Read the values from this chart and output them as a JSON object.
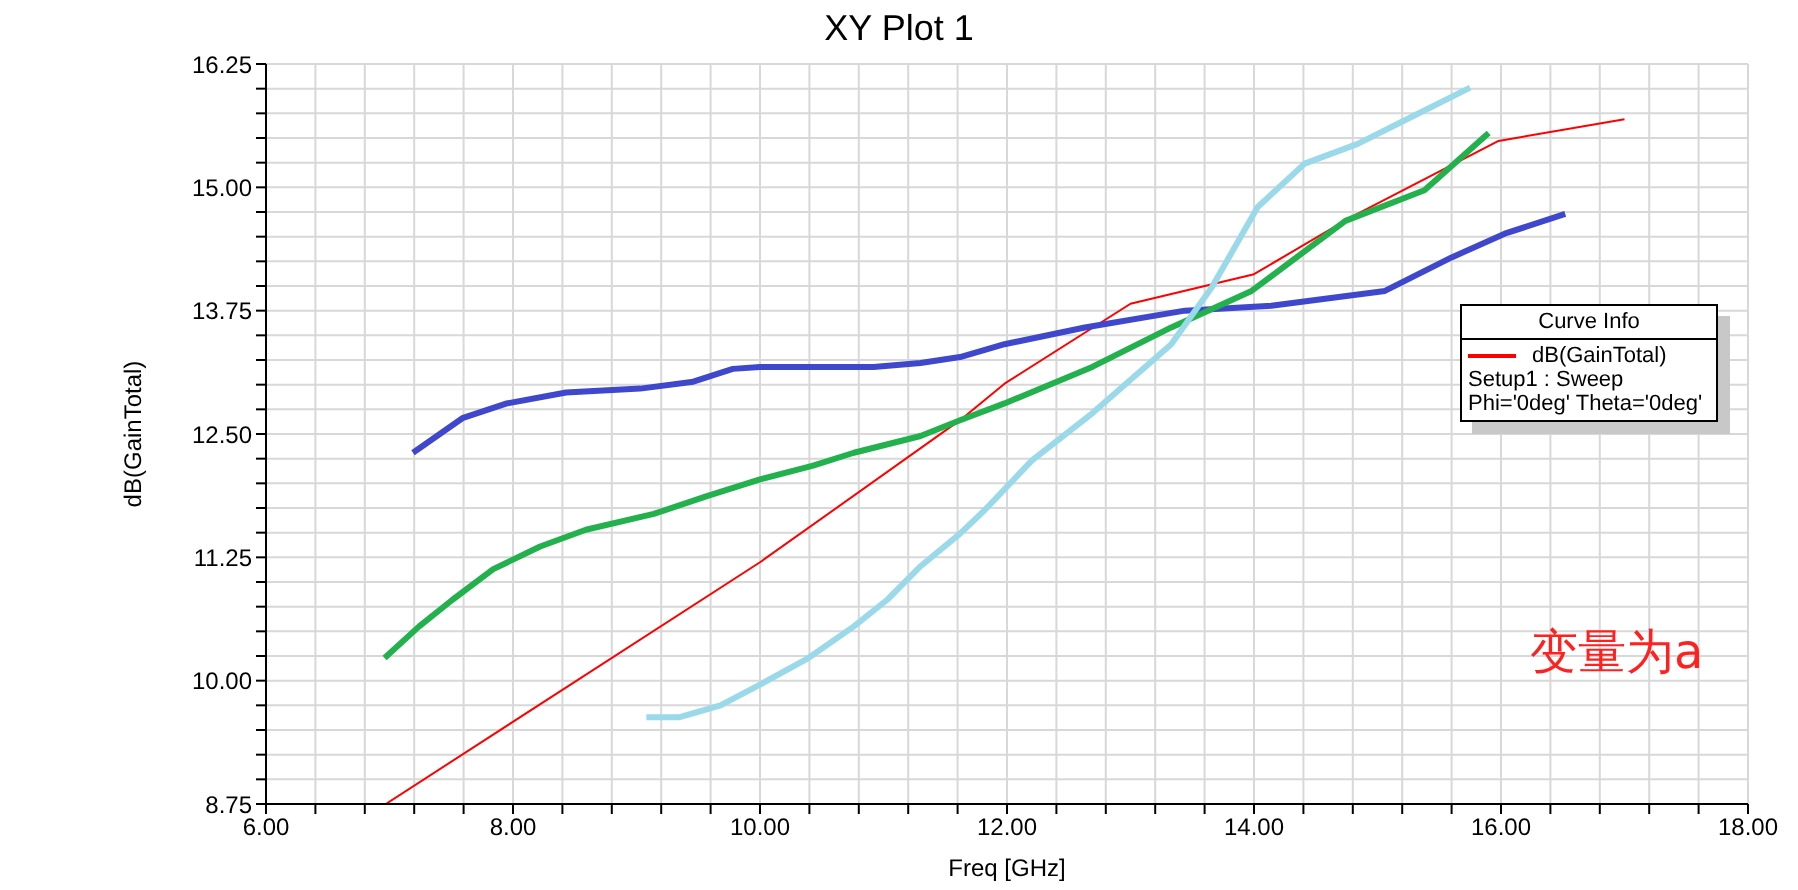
{
  "chart_data": {
    "type": "line",
    "title": "XY Plot 1",
    "xlabel": "Freq [GHz]",
    "ylabel": "dB(GainTotal)",
    "legend_title": "Curve Info",
    "legend": "right",
    "grid": true,
    "marker": "none",
    "line_style": "solid",
    "annotations": [
      "Setup1 : Sweep",
      "Phi='0deg' Theta='0deg'",
      "变量为a"
    ],
    "xlim": [
      6,
      18
    ],
    "ylim": [
      8.75,
      16.25
    ],
    "xticks": [
      {
        "value": 6,
        "label": "6.00"
      },
      {
        "value": 6.4,
        "label": null
      },
      {
        "value": 6.8,
        "label": null
      },
      {
        "value": 7.2,
        "label": null
      },
      {
        "value": 7.6,
        "label": null
      },
      {
        "value": 8,
        "label": "8.00"
      },
      {
        "value": 8.4,
        "label": null
      },
      {
        "value": 8.8,
        "label": null
      },
      {
        "value": 9.2,
        "label": null
      },
      {
        "value": 9.6,
        "label": null
      },
      {
        "value": 10,
        "label": "10.00"
      },
      {
        "value": 10.4,
        "label": null
      },
      {
        "value": 10.8,
        "label": null
      },
      {
        "value": 11.2,
        "label": null
      },
      {
        "value": 11.6,
        "label": null
      },
      {
        "value": 12,
        "label": "12.00"
      },
      {
        "value": 12.4,
        "label": null
      },
      {
        "value": 12.8,
        "label": null
      },
      {
        "value": 13.2,
        "label": null
      },
      {
        "value": 13.6,
        "label": null
      },
      {
        "value": 14,
        "label": "14.00"
      },
      {
        "value": 14.4,
        "label": null
      },
      {
        "value": 14.8,
        "label": null
      },
      {
        "value": 15.2,
        "label": null
      },
      {
        "value": 15.6,
        "label": null
      },
      {
        "value": 16,
        "label": "16.00"
      },
      {
        "value": 16.4,
        "label": null
      },
      {
        "value": 16.8,
        "label": null
      },
      {
        "value": 17.2,
        "label": null
      },
      {
        "value": 17.6,
        "label": null
      },
      {
        "value": 18,
        "label": "18.00"
      }
    ],
    "yticks": [
      {
        "value": 8.75,
        "label": "8.75"
      },
      {
        "value": 9,
        "label": null
      },
      {
        "value": 9.25,
        "label": null
      },
      {
        "value": 9.5,
        "label": null
      },
      {
        "value": 9.75,
        "label": null
      },
      {
        "value": 10,
        "label": "10.00"
      },
      {
        "value": 10.25,
        "label": null
      },
      {
        "value": 10.5,
        "label": null
      },
      {
        "value": 10.75,
        "label": null
      },
      {
        "value": 11,
        "label": null
      },
      {
        "value": 11.25,
        "label": "11.25"
      },
      {
        "value": 11.5,
        "label": null
      },
      {
        "value": 11.75,
        "label": null
      },
      {
        "value": 12,
        "label": null
      },
      {
        "value": 12.25,
        "label": null
      },
      {
        "value": 12.5,
        "label": "12.50"
      },
      {
        "value": 12.75,
        "label": null
      },
      {
        "value": 13,
        "label": null
      },
      {
        "value": 13.25,
        "label": null
      },
      {
        "value": 13.5,
        "label": null
      },
      {
        "value": 13.75,
        "label": "13.75"
      },
      {
        "value": 14,
        "label": null
      },
      {
        "value": 14.25,
        "label": null
      },
      {
        "value": 14.5,
        "label": null
      },
      {
        "value": 14.75,
        "label": null
      },
      {
        "value": 15,
        "label": "15.00"
      },
      {
        "value": 15.25,
        "label": null
      },
      {
        "value": 15.5,
        "label": null
      },
      {
        "value": 15.75,
        "label": null
      },
      {
        "value": 16,
        "label": null
      },
      {
        "value": 16.25,
        "label": "16.25"
      }
    ],
    "series": [
      {
        "name": "dB(GainTotal)",
        "color": "#ff0000",
        "x": [
          6.97,
          10,
          11.62,
          11.98,
          13,
          14,
          14.79,
          15.98,
          17
        ],
        "values": [
          8.75,
          11.2,
          12.64,
          13.01,
          13.82,
          14.12,
          14.7,
          15.47,
          15.69
        ]
      },
      {
        "color": "#3f48cc",
        "x": [
          7.19,
          7.59,
          7.95,
          8.43,
          9.03,
          9.46,
          9.78,
          10,
          10.92,
          11.3,
          11.62,
          11.98,
          12.63,
          13.44,
          14.14,
          15.06,
          15.6,
          16.03,
          16.52
        ],
        "values": [
          12.31,
          12.66,
          12.81,
          12.92,
          12.96,
          13.03,
          13.16,
          13.18,
          13.18,
          13.22,
          13.28,
          13.41,
          13.58,
          13.75,
          13.8,
          13.95,
          14.29,
          14.53,
          14.73
        ]
      },
      {
        "color": "#22b14c",
        "x": [
          6.96,
          7.24,
          7.51,
          7.84,
          8.22,
          8.59,
          9.14,
          9.57,
          10,
          10.43,
          10.76,
          11.3,
          11.62,
          11.98,
          12.69,
          13.33,
          13.98,
          14.74,
          15.38,
          15.9
        ],
        "values": [
          10.23,
          10.55,
          10.82,
          11.13,
          11.36,
          11.53,
          11.69,
          11.87,
          12.04,
          12.18,
          12.31,
          12.48,
          12.64,
          12.81,
          13.18,
          13.58,
          13.95,
          14.66,
          14.97,
          15.55
        ]
      },
      {
        "color": "#99d9ea",
        "x": [
          9.08,
          9.35,
          9.68,
          10,
          10.38,
          10.76,
          11.03,
          11.3,
          11.62,
          11.82,
          12.2,
          12.69,
          13.33,
          13.66,
          14.03,
          14.41,
          14.84,
          15.27,
          15.75
        ],
        "values": [
          9.63,
          9.63,
          9.75,
          9.96,
          10.22,
          10.55,
          10.82,
          11.16,
          11.49,
          11.73,
          12.23,
          12.71,
          13.41,
          13.99,
          14.8,
          15.24,
          15.44,
          15.71,
          16.01
        ]
      }
    ]
  }
}
